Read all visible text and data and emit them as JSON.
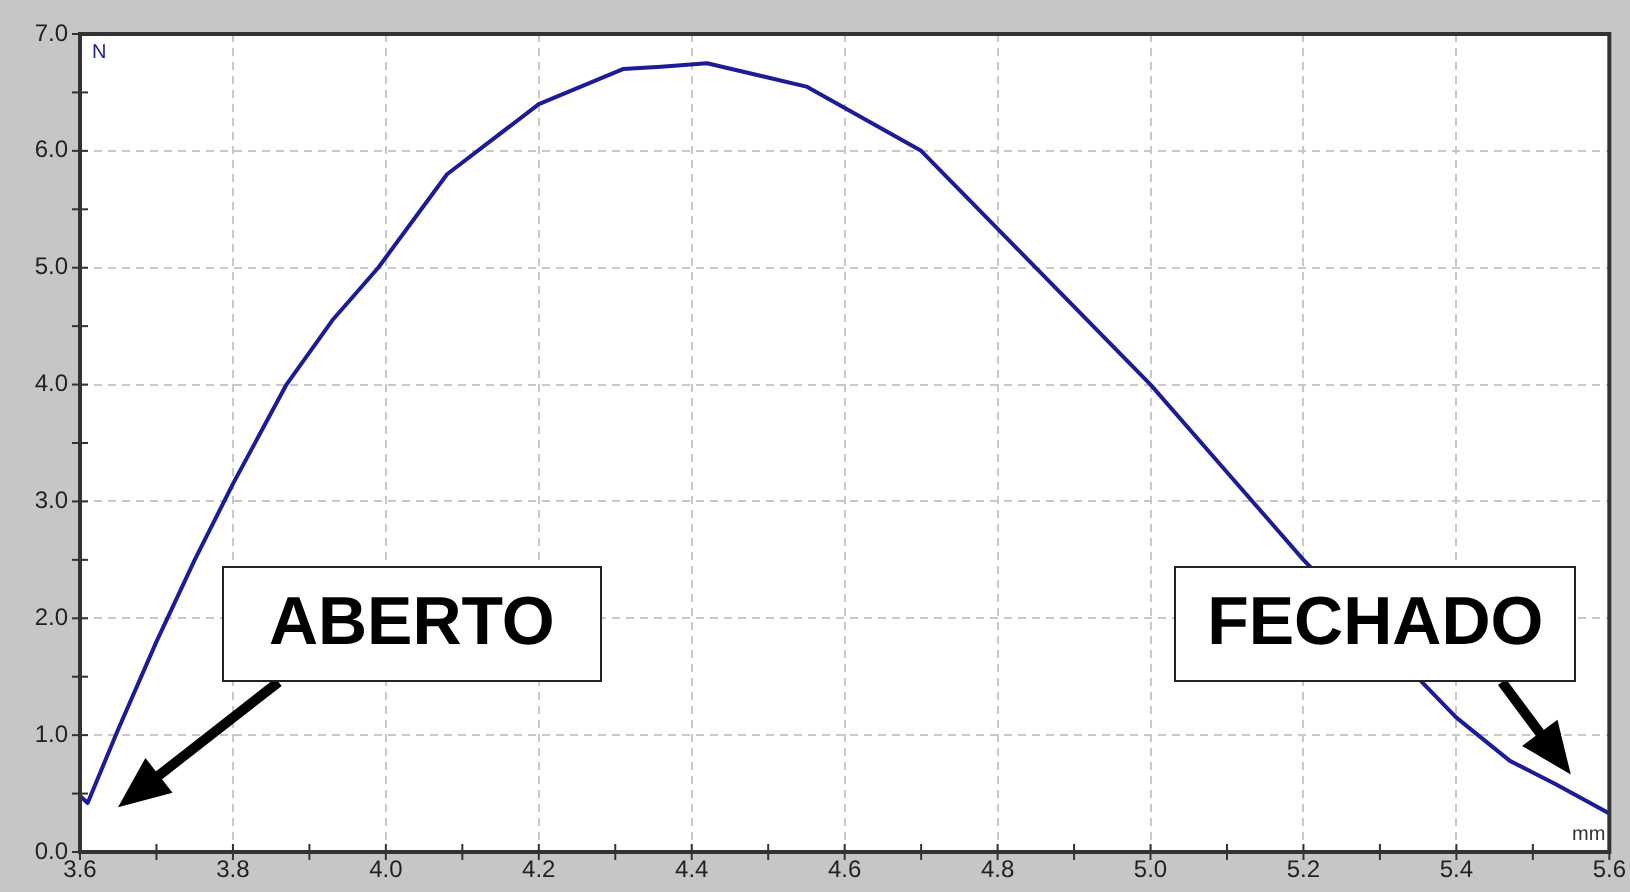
{
  "chart_data": {
    "type": "line",
    "xlabel": "mm",
    "ylabel": "N",
    "x": [
      3.6,
      3.61,
      3.65,
      3.7,
      3.75,
      3.8,
      3.87,
      3.93,
      3.99,
      4.08,
      4.2,
      4.31,
      4.36,
      4.42,
      4.55,
      4.7,
      4.82,
      5.0,
      5.1,
      5.2,
      5.4,
      5.47,
      5.53,
      5.6
    ],
    "series": [
      {
        "color": "#1c1c96",
        "values": [
          0.48,
          0.42,
          1.05,
          1.8,
          2.5,
          3.15,
          4.0,
          4.55,
          5.0,
          5.8,
          6.4,
          6.7,
          6.72,
          6.75,
          6.55,
          6.0,
          5.2,
          4.0,
          3.25,
          2.5,
          1.15,
          0.78,
          0.58,
          0.33
        ]
      }
    ],
    "xlim": [
      3.6,
      5.6
    ],
    "ylim": [
      0,
      7
    ],
    "xticks": [
      3.6,
      {
        "value": 3.7,
        "label": null
      },
      {
        "value": 3.8,
        "label": "3.8"
      },
      {
        "value": 3.9,
        "label": null
      },
      {
        "value": 4.0,
        "label": "4.0"
      },
      {
        "value": 4.1,
        "label": null
      },
      {
        "value": 4.2,
        "label": "4.2"
      },
      {
        "value": 4.3,
        "label": null
      },
      {
        "value": 4.4,
        "label": "4.4"
      },
      {
        "value": 4.5,
        "label": null
      },
      {
        "value": 4.6,
        "label": "4.6"
      },
      {
        "value": 4.7,
        "label": null
      },
      {
        "value": 4.8,
        "label": "4.8"
      },
      {
        "value": 4.9,
        "label": null
      },
      {
        "value": 5.0,
        "label": "5.0"
      },
      {
        "value": 5.1,
        "label": null
      },
      {
        "value": 5.2,
        "label": "5.2"
      },
      {
        "value": 5.3,
        "label": null
      },
      {
        "value": 5.4,
        "label": "5.4"
      },
      {
        "value": 5.5,
        "label": null
      },
      {
        "value": 5.6,
        "label": "5.6"
      }
    ],
    "yticks": [
      {
        "value": 0,
        "label": "0.0"
      },
      {
        "value": 0.5,
        "label": null
      },
      {
        "value": 1,
        "label": "1.0"
      },
      {
        "value": 1.5,
        "label": null
      },
      {
        "value": 2,
        "label": "2.0"
      },
      {
        "value": 2.5,
        "label": null
      },
      {
        "value": 3,
        "label": "3.0"
      },
      {
        "value": 3.5,
        "label": null
      },
      {
        "value": 4,
        "label": "4.0"
      },
      {
        "value": 4.5,
        "label": null
      },
      {
        "value": 5,
        "label": "5.0"
      },
      {
        "value": 5.5,
        "label": null
      },
      {
        "value": 6,
        "label": "6.0"
      },
      {
        "value": 6.5,
        "label": null
      },
      {
        "value": 7,
        "label": "7.0"
      }
    ],
    "grid": true,
    "marker": "none",
    "line_style": "solid",
    "legend": false,
    "annotations": [
      "ABERTO",
      "FECHADO"
    ]
  }
}
